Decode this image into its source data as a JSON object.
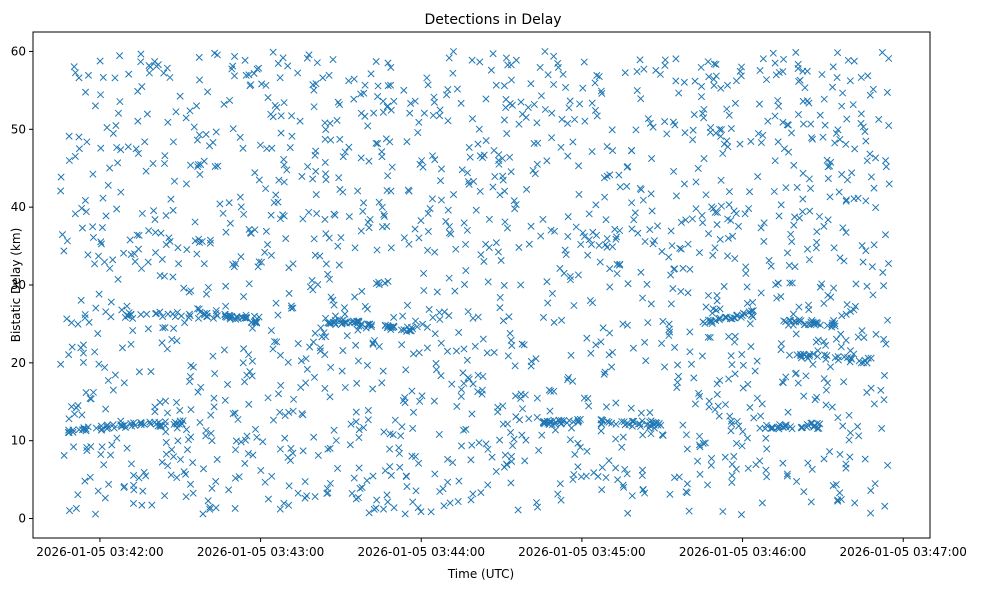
{
  "chart_data": {
    "type": "scatter",
    "title": "Detections in Delay",
    "xlabel": "Time (UTC)",
    "ylabel": "Bistatic Delay (km)",
    "marker": "x",
    "color": "#1f77b4",
    "grid": false,
    "x_axis_type": "datetime",
    "xlim": [
      "2026-01-05 03:41:35",
      "2026-01-05 03:47:10"
    ],
    "ylim": [
      -2.5,
      62.5
    ],
    "x_ticks": [
      "2026-01-05 03:42:00",
      "2026-01-05 03:43:00",
      "2026-01-05 03:44:00",
      "2026-01-05 03:45:00",
      "2026-01-05 03:46:00",
      "2026-01-05 03:47:00"
    ],
    "y_ticks": [
      0,
      10,
      20,
      30,
      40,
      50,
      60
    ],
    "x_range_of_data": [
      "2026-01-05 03:41:45",
      "2026-01-05 03:46:55"
    ],
    "y_range_of_data": [
      0.5,
      60
    ],
    "detections_total_approx": 2000,
    "tracks": [
      {
        "x_start": "2026-01-05 03:41:48",
        "x_end": "2026-01-05 03:42:10",
        "y_start": 11.3,
        "y_end": 11.9
      },
      {
        "x_start": "2026-01-05 03:42:10",
        "x_end": "2026-01-05 03:42:32",
        "y_start": 12.0,
        "y_end": 12.3
      },
      {
        "x_start": "2026-01-05 03:42:10",
        "x_end": "2026-01-05 03:42:45",
        "y_start": 26.3,
        "y_end": 26.0
      },
      {
        "x_start": "2026-01-05 03:42:45",
        "x_end": "2026-01-05 03:43:02",
        "y_start": 26.0,
        "y_end": 25.3
      },
      {
        "x_start": "2026-01-05 03:43:25",
        "x_end": "2026-01-05 03:43:38",
        "y_start": 25.4,
        "y_end": 25.0
      },
      {
        "x_start": "2026-01-05 03:43:38",
        "x_end": "2026-01-05 03:43:58",
        "y_start": 24.8,
        "y_end": 24.2
      },
      {
        "x_start": "2026-01-05 03:44:45",
        "x_end": "2026-01-05 03:45:00",
        "y_start": 12.3,
        "y_end": 12.5
      },
      {
        "x_start": "2026-01-05 03:45:05",
        "x_end": "2026-01-05 03:45:30",
        "y_start": 12.4,
        "y_end": 12.0
      },
      {
        "x_start": "2026-01-05 03:45:45",
        "x_end": "2026-01-05 03:46:05",
        "y_start": 25.0,
        "y_end": 26.5
      },
      {
        "x_start": "2026-01-05 03:46:15",
        "x_end": "2026-01-05 03:46:35",
        "y_start": 25.5,
        "y_end": 24.8
      },
      {
        "x_start": "2026-01-05 03:46:05",
        "x_end": "2026-01-05 03:46:30",
        "y_start": 11.6,
        "y_end": 12.1
      },
      {
        "x_start": "2026-01-05 03:46:20",
        "x_end": "2026-01-05 03:46:50",
        "y_start": 21.0,
        "y_end": 20.2
      }
    ]
  }
}
